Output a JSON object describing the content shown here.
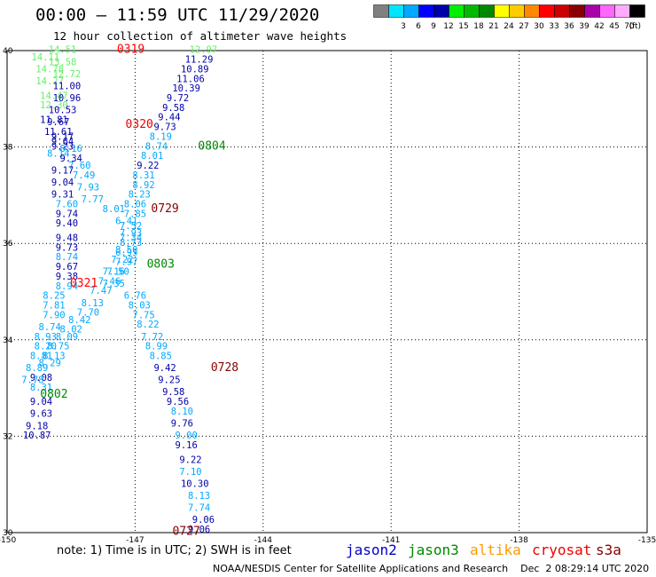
{
  "header": {
    "title": "00:00 – 11:59 UTC 11/29/2020",
    "subtitle": "12 hour collection of altimeter wave heights"
  },
  "colorbar": {
    "unit": "(ft)",
    "swatches": [
      {
        "color": "#808080",
        "label": ""
      },
      {
        "color": "#00e5ff",
        "label": "3"
      },
      {
        "color": "#00a8ff",
        "label": "6"
      },
      {
        "color": "#0000ff",
        "label": "9"
      },
      {
        "color": "#0000a8",
        "label": "12"
      },
      {
        "color": "#00ee00",
        "label": "15"
      },
      {
        "color": "#00b800",
        "label": "18"
      },
      {
        "color": "#008800",
        "label": "21"
      },
      {
        "color": "#ffff00",
        "label": "24"
      },
      {
        "color": "#ffcc00",
        "label": "27"
      },
      {
        "color": "#ff8800",
        "label": "30"
      },
      {
        "color": "#ff0000",
        "label": "33"
      },
      {
        "color": "#cc0000",
        "label": "36"
      },
      {
        "color": "#880000",
        "label": "39"
      },
      {
        "color": "#aa00aa",
        "label": "42"
      },
      {
        "color": "#ff66ff",
        "label": "45"
      },
      {
        "color": "#ffaaff",
        "label": "70"
      },
      {
        "color": "#000000",
        "label": ""
      }
    ]
  },
  "footer": {
    "note": "note: 1) Time is in UTC; 2) SWH is in feet",
    "missions": [
      {
        "name": "jason2",
        "color": "#0000cc"
      },
      {
        "name": "jason3",
        "color": "#008800"
      },
      {
        "name": "altika",
        "color": "#ff9900"
      },
      {
        "name": "cryosat",
        "color": "#ee0000"
      },
      {
        "name": "s3a",
        "color": "#880000"
      }
    ],
    "credit": "NOAA/NESDIS Center for Satellite Applications and Research    Dec  2 08:29:14 UTC 2020"
  },
  "chart_data": {
    "type": "scatter",
    "xlim": [
      -150,
      -135
    ],
    "ylim": [
      30,
      40
    ],
    "x_ticks": [
      "-150",
      "-147",
      "-144",
      "-141",
      "-138",
      "-135"
    ],
    "y_ticks": [
      "30",
      "32",
      "34",
      "36",
      "38",
      "40"
    ],
    "grid": true,
    "colors": {
      "c1": "#00a8ff",
      "c2": "#0000a8",
      "c3": "#66ee66"
    },
    "passes": [
      {
        "label": "0319",
        "lon": -147.1,
        "lat": 39.95,
        "color": "#ff0000"
      },
      {
        "label": "0320",
        "lon": -146.9,
        "lat": 38.4,
        "color": "#ee0000"
      },
      {
        "label": "0804",
        "lon": -145.2,
        "lat": 37.95,
        "color": "#008800"
      },
      {
        "label": "0729",
        "lon": -146.3,
        "lat": 36.65,
        "color": "#880000"
      },
      {
        "label": "0803",
        "lon": -146.4,
        "lat": 35.5,
        "color": "#008800"
      },
      {
        "label": "0321",
        "lon": -148.2,
        "lat": 35.1,
        "color": "#ff0000"
      },
      {
        "label": "0728",
        "lon": -144.9,
        "lat": 33.35,
        "color": "#880000"
      },
      {
        "label": "0802",
        "lon": -148.9,
        "lat": 32.8,
        "color": "#008800"
      },
      {
        "label": "0727",
        "lon": -145.8,
        "lat": 29.95,
        "color": "#880000"
      }
    ],
    "points": [
      {
        "lon": -148.7,
        "lat": 39.95,
        "v": "14.51",
        "c": "c3"
      },
      {
        "lon": -149.1,
        "lat": 39.8,
        "v": "14.11",
        "c": "c3"
      },
      {
        "lon": -148.7,
        "lat": 39.7,
        "v": "13.58",
        "c": "c3"
      },
      {
        "lon": -149.0,
        "lat": 39.55,
        "v": "14.78",
        "c": "c3"
      },
      {
        "lon": -148.6,
        "lat": 39.45,
        "v": "12.72",
        "c": "c3"
      },
      {
        "lon": -149.0,
        "lat": 39.3,
        "v": "14.27",
        "c": "c3"
      },
      {
        "lon": -148.6,
        "lat": 39.2,
        "v": "11.00",
        "c": "c2"
      },
      {
        "lon": -148.9,
        "lat": 39.0,
        "v": "14.47",
        "c": "c3"
      },
      {
        "lon": -148.6,
        "lat": 38.95,
        "v": "10.96",
        "c": "c2"
      },
      {
        "lon": -148.9,
        "lat": 38.8,
        "v": "12.30",
        "c": "c3"
      },
      {
        "lon": -148.7,
        "lat": 38.7,
        "v": "10.53",
        "c": "c2"
      },
      {
        "lon": -148.9,
        "lat": 38.5,
        "v": "11.81",
        "c": "c2"
      },
      {
        "lon": -148.8,
        "lat": 38.45,
        "v": "9.67",
        "c": "c2"
      },
      {
        "lon": -148.8,
        "lat": 38.25,
        "v": "11.61",
        "c": "c2"
      },
      {
        "lon": -148.7,
        "lat": 38.15,
        "v": "9.17",
        "c": "c2"
      },
      {
        "lon": -148.7,
        "lat": 38.05,
        "v": "9.64",
        "c": "c2"
      },
      {
        "lon": -148.7,
        "lat": 37.95,
        "v": "9.23",
        "c": "c2"
      },
      {
        "lon": -148.5,
        "lat": 37.9,
        "v": "8.16",
        "c": "c1"
      },
      {
        "lon": -148.8,
        "lat": 37.8,
        "v": "8.14",
        "c": "c1"
      },
      {
        "lon": -148.5,
        "lat": 37.7,
        "v": "9.34",
        "c": "c2"
      },
      {
        "lon": -148.3,
        "lat": 37.55,
        "v": "7.60",
        "c": "c1"
      },
      {
        "lon": -148.7,
        "lat": 37.45,
        "v": "9.17",
        "c": "c2"
      },
      {
        "lon": -148.2,
        "lat": 37.35,
        "v": "7.49",
        "c": "c1"
      },
      {
        "lon": -148.7,
        "lat": 37.2,
        "v": "9.04",
        "c": "c2"
      },
      {
        "lon": -148.1,
        "lat": 37.1,
        "v": "7.93",
        "c": "c1"
      },
      {
        "lon": -148.7,
        "lat": 36.95,
        "v": "9.31",
        "c": "c2"
      },
      {
        "lon": -148.0,
        "lat": 36.85,
        "v": "7.77",
        "c": "c1"
      },
      {
        "lon": -148.6,
        "lat": 36.75,
        "v": "7.60",
        "c": "c1"
      },
      {
        "lon": -147.5,
        "lat": 36.65,
        "v": "8.01",
        "c": "c1"
      },
      {
        "lon": -148.6,
        "lat": 36.55,
        "v": "9.74",
        "c": "c2"
      },
      {
        "lon": -147.2,
        "lat": 36.4,
        "v": "6.41",
        "c": "c1"
      },
      {
        "lon": -148.6,
        "lat": 36.35,
        "v": "9.40",
        "c": "c2"
      },
      {
        "lon": -147.1,
        "lat": 36.15,
        "v": "7.93",
        "c": "c1"
      },
      {
        "lon": -148.6,
        "lat": 36.05,
        "v": "9.48",
        "c": "c2"
      },
      {
        "lon": -147.1,
        "lat": 35.95,
        "v": "8.73",
        "c": "c1"
      },
      {
        "lon": -148.6,
        "lat": 35.85,
        "v": "9.73",
        "c": "c2"
      },
      {
        "lon": -147.2,
        "lat": 35.75,
        "v": "6.95",
        "c": "c1"
      },
      {
        "lon": -148.6,
        "lat": 35.65,
        "v": "8.74",
        "c": "c1"
      },
      {
        "lon": -147.2,
        "lat": 35.55,
        "v": "7.97",
        "c": "c1"
      },
      {
        "lon": -148.6,
        "lat": 35.45,
        "v": "9.67",
        "c": "c2"
      },
      {
        "lon": -147.5,
        "lat": 35.35,
        "v": "7.16",
        "c": "c1"
      },
      {
        "lon": -148.6,
        "lat": 35.25,
        "v": "9.38",
        "c": "c2"
      },
      {
        "lon": -147.6,
        "lat": 35.15,
        "v": "7.46",
        "c": "c1"
      },
      {
        "lon": -148.6,
        "lat": 35.05,
        "v": "8.94",
        "c": "c1"
      },
      {
        "lon": -147.8,
        "lat": 34.95,
        "v": "7.47",
        "c": "c1"
      },
      {
        "lon": -148.9,
        "lat": 34.85,
        "v": "8.25",
        "c": "c1"
      },
      {
        "lon": -147.0,
        "lat": 34.85,
        "v": "6.76",
        "c": "c1"
      },
      {
        "lon": -148.0,
        "lat": 34.7,
        "v": "8.13",
        "c": "c1"
      },
      {
        "lon": -148.9,
        "lat": 34.65,
        "v": "7.81",
        "c": "c1"
      },
      {
        "lon": -146.9,
        "lat": 34.65,
        "v": "8.03",
        "c": "c1"
      },
      {
        "lon": -148.1,
        "lat": 34.5,
        "v": "7.70",
        "c": "c1"
      },
      {
        "lon": -148.9,
        "lat": 34.45,
        "v": "7.90",
        "c": "c1"
      },
      {
        "lon": -146.8,
        "lat": 34.45,
        "v": "7.75",
        "c": "c1"
      },
      {
        "lon": -148.3,
        "lat": 34.35,
        "v": "8.42",
        "c": "c1"
      },
      {
        "lon": -149.0,
        "lat": 34.2,
        "v": "8.74",
        "c": "c1"
      },
      {
        "lon": -148.5,
        "lat": 34.15,
        "v": "8.02",
        "c": "c1"
      },
      {
        "lon": -146.7,
        "lat": 34.25,
        "v": "8.22",
        "c": "c1"
      },
      {
        "lon": -148.6,
        "lat": 34.0,
        "v": "8.09",
        "c": "c1"
      },
      {
        "lon": -149.1,
        "lat": 34.0,
        "v": "8.93",
        "c": "c1"
      },
      {
        "lon": -146.6,
        "lat": 34.0,
        "v": "7.72",
        "c": "c1"
      },
      {
        "lon": -148.8,
        "lat": 33.8,
        "v": "8.75",
        "c": "c1"
      },
      {
        "lon": -149.1,
        "lat": 33.8,
        "v": "8.20",
        "c": "c1"
      },
      {
        "lon": -146.5,
        "lat": 33.8,
        "v": "8.99",
        "c": "c1"
      },
      {
        "lon": -148.9,
        "lat": 33.6,
        "v": "8.13",
        "c": "c1"
      },
      {
        "lon": -149.2,
        "lat": 33.6,
        "v": "8.81",
        "c": "c1"
      },
      {
        "lon": -146.4,
        "lat": 33.6,
        "v": "8.85",
        "c": "c1"
      },
      {
        "lon": -149.0,
        "lat": 33.45,
        "v": "8.29",
        "c": "c1"
      },
      {
        "lon": -149.3,
        "lat": 33.35,
        "v": "8.89",
        "c": "c1"
      },
      {
        "lon": -146.3,
        "lat": 33.35,
        "v": "9.42",
        "c": "c2"
      },
      {
        "lon": -149.2,
        "lat": 33.15,
        "v": "9.08",
        "c": "c2"
      },
      {
        "lon": -149.4,
        "lat": 33.1,
        "v": "7.78",
        "c": "c1"
      },
      {
        "lon": -146.2,
        "lat": 33.1,
        "v": "9.25",
        "c": "c2"
      },
      {
        "lon": -149.2,
        "lat": 32.95,
        "v": "8.31",
        "c": "c1"
      },
      {
        "lon": -146.1,
        "lat": 32.85,
        "v": "9.58",
        "c": "c2"
      },
      {
        "lon": -149.2,
        "lat": 32.65,
        "v": "9.04",
        "c": "c2"
      },
      {
        "lon": -146.0,
        "lat": 32.65,
        "v": "9.56",
        "c": "c2"
      },
      {
        "lon": -149.2,
        "lat": 32.4,
        "v": "9.63",
        "c": "c2"
      },
      {
        "lon": -145.9,
        "lat": 32.45,
        "v": "8.10",
        "c": "c1"
      },
      {
        "lon": -149.3,
        "lat": 32.15,
        "v": "9.18",
        "c": "c2"
      },
      {
        "lon": -145.9,
        "lat": 32.2,
        "v": "9.76",
        "c": "c2"
      },
      {
        "lon": -149.3,
        "lat": 31.95,
        "v": "10.87",
        "c": "c2"
      },
      {
        "lon": -145.8,
        "lat": 31.95,
        "v": "9.00",
        "c": "c1"
      },
      {
        "lon": -145.8,
        "lat": 31.75,
        "v": "9.16",
        "c": "c2"
      },
      {
        "lon": -145.7,
        "lat": 31.45,
        "v": "9.22",
        "c": "c2"
      },
      {
        "lon": -145.7,
        "lat": 31.2,
        "v": "7.10",
        "c": "c1"
      },
      {
        "lon": -145.6,
        "lat": 30.95,
        "v": "10.30",
        "c": "c2"
      },
      {
        "lon": -145.5,
        "lat": 30.7,
        "v": "8.13",
        "c": "c1"
      },
      {
        "lon": -145.5,
        "lat": 30.45,
        "v": "7.74",
        "c": "c1"
      },
      {
        "lon": -145.4,
        "lat": 30.2,
        "v": "9.06",
        "c": "c2"
      },
      {
        "lon": -145.5,
        "lat": 30.0,
        "v": "9.06",
        "c": "c2"
      },
      {
        "lon": -145.4,
        "lat": 39.95,
        "v": "12.97",
        "c": "c3"
      },
      {
        "lon": -145.5,
        "lat": 39.75,
        "v": "11.29",
        "c": "c2"
      },
      {
        "lon": -145.6,
        "lat": 39.55,
        "v": "10.89",
        "c": "c2"
      },
      {
        "lon": -145.7,
        "lat": 39.35,
        "v": "11.06",
        "c": "c2"
      },
      {
        "lon": -145.8,
        "lat": 39.15,
        "v": "10.39",
        "c": "c2"
      },
      {
        "lon": -146.0,
        "lat": 38.95,
        "v": "9.72",
        "c": "c2"
      },
      {
        "lon": -146.1,
        "lat": 38.75,
        "v": "9.58",
        "c": "c2"
      },
      {
        "lon": -146.2,
        "lat": 38.55,
        "v": "9.44",
        "c": "c2"
      },
      {
        "lon": -146.3,
        "lat": 38.35,
        "v": "9.73",
        "c": "c2"
      },
      {
        "lon": -146.4,
        "lat": 38.15,
        "v": "8.19",
        "c": "c1"
      },
      {
        "lon": -146.5,
        "lat": 37.95,
        "v": "8.74",
        "c": "c1"
      },
      {
        "lon": -146.6,
        "lat": 37.75,
        "v": "8.01",
        "c": "c1"
      },
      {
        "lon": -146.7,
        "lat": 37.55,
        "v": "9.22",
        "c": "c2"
      },
      {
        "lon": -146.8,
        "lat": 37.35,
        "v": "8.31",
        "c": "c1"
      },
      {
        "lon": -146.8,
        "lat": 37.15,
        "v": "8.92",
        "c": "c1"
      },
      {
        "lon": -146.9,
        "lat": 36.95,
        "v": "8.23",
        "c": "c1"
      },
      {
        "lon": -147.0,
        "lat": 36.75,
        "v": "8.06",
        "c": "c1"
      },
      {
        "lon": -147.0,
        "lat": 36.55,
        "v": "7.85",
        "c": "c1"
      },
      {
        "lon": -147.1,
        "lat": 36.3,
        "v": "7.52",
        "c": "c1"
      },
      {
        "lon": -147.1,
        "lat": 36.05,
        "v": "7.34",
        "c": "c1"
      },
      {
        "lon": -147.2,
        "lat": 35.8,
        "v": "8.50",
        "c": "c1"
      },
      {
        "lon": -147.3,
        "lat": 35.6,
        "v": "7.22",
        "c": "c1"
      },
      {
        "lon": -147.4,
        "lat": 35.35,
        "v": "7.50",
        "c": "c1"
      },
      {
        "lon": -147.5,
        "lat": 35.1,
        "v": "7.35",
        "c": "c1"
      }
    ]
  }
}
